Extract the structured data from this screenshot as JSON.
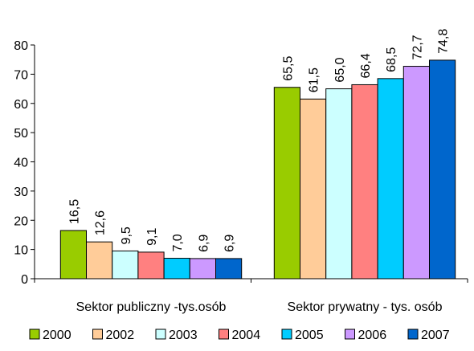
{
  "chart_data": {
    "type": "bar",
    "title": "",
    "xlabel": "",
    "ylabel": "",
    "ylim": [
      0,
      80
    ],
    "yticks": [
      "0",
      "10",
      "20",
      "30",
      "40",
      "50",
      "60",
      "70",
      "80"
    ],
    "grid": false,
    "legend_position": "bottom",
    "categories": [
      "Sektor publiczny -tys.osób",
      "Sektor prywatny - tys. osób"
    ],
    "series": [
      {
        "name": "2000",
        "color": "#99cc00",
        "values": [
          16.5,
          65.5
        ],
        "labels": [
          "16,5",
          "65,5"
        ]
      },
      {
        "name": "2002",
        "color": "#ffcc99",
        "values": [
          12.6,
          61.5
        ],
        "labels": [
          "12,6",
          "61,5"
        ]
      },
      {
        "name": "2003",
        "color": "#ccffff",
        "values": [
          9.5,
          65.0
        ],
        "labels": [
          "9,5",
          "65,0"
        ]
      },
      {
        "name": "2004",
        "color": "#ff8080",
        "values": [
          9.1,
          66.4
        ],
        "labels": [
          "9,1",
          "66,4"
        ]
      },
      {
        "name": "2005",
        "color": "#00ccff",
        "values": [
          7.0,
          68.5
        ],
        "labels": [
          "7,0",
          "68,5"
        ]
      },
      {
        "name": "2006",
        "color": "#cc99ff",
        "values": [
          6.9,
          72.7
        ],
        "labels": [
          "6,9",
          "72,7"
        ]
      },
      {
        "name": "2007",
        "color": "#0066cc",
        "values": [
          6.9,
          74.8
        ],
        "labels": [
          "6,9",
          "74,8"
        ]
      }
    ]
  }
}
